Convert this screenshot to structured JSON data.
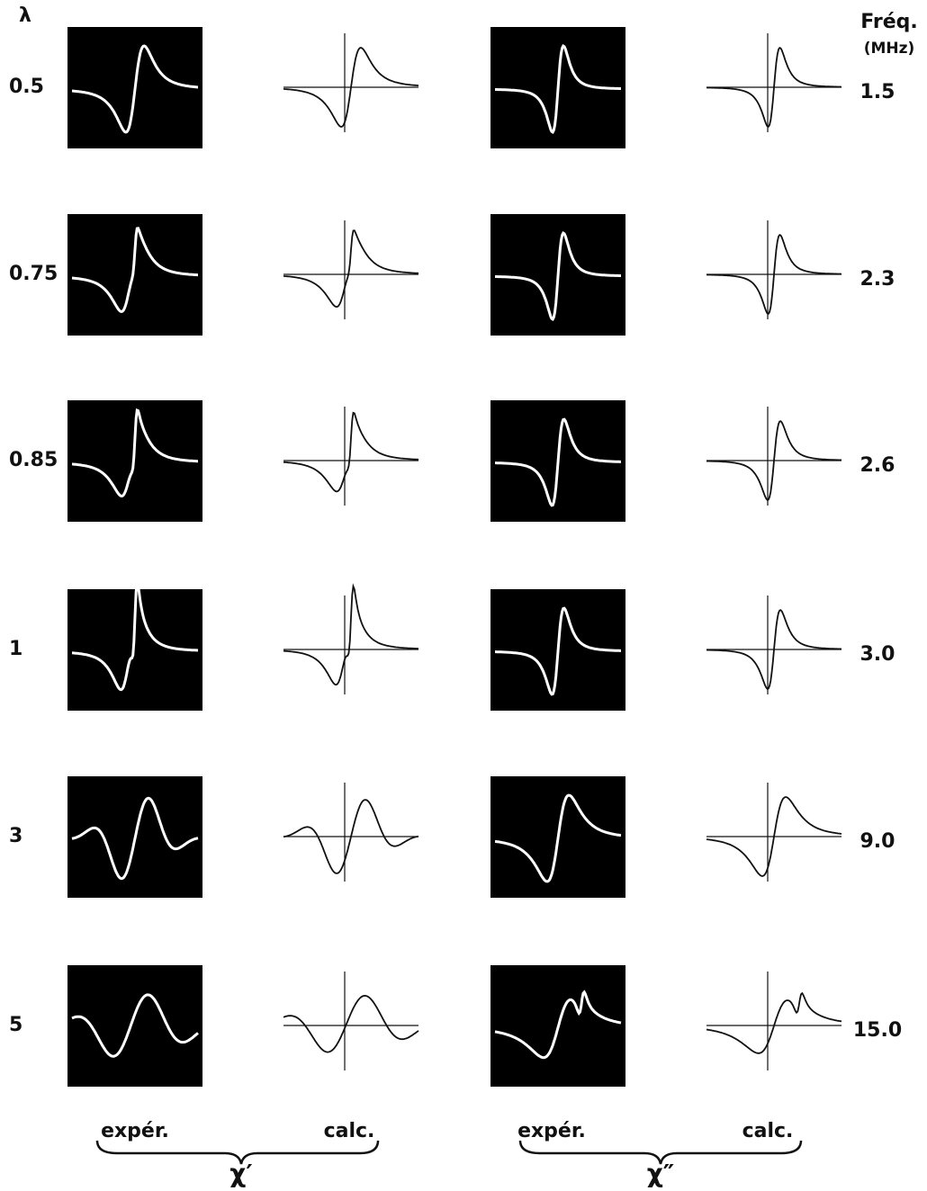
{
  "header": {
    "lambda": "λ",
    "freq_title": "Fréq.",
    "freq_unit": "(MHz)"
  },
  "rows": [
    {
      "lambda": "0.5",
      "freq": "1.5"
    },
    {
      "lambda": "0.75",
      "freq": "2.3"
    },
    {
      "lambda": "0.85",
      "freq": "2.6"
    },
    {
      "lambda": "1",
      "freq": "3.0"
    },
    {
      "lambda": "3",
      "freq": "9.0"
    },
    {
      "lambda": "5",
      "freq": "15.0"
    }
  ],
  "footer": {
    "left": {
      "exp": "expér.",
      "calc": "calc.",
      "symbol": "χ′"
    },
    "right": {
      "exp": "expér.",
      "calc": "calc.",
      "symbol": "χ″"
    }
  }
}
